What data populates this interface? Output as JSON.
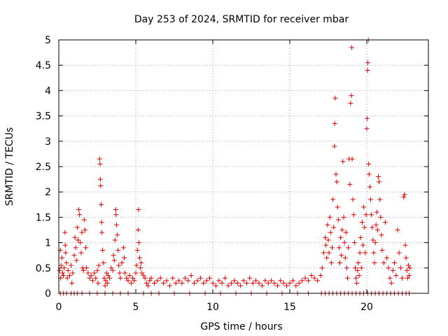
{
  "chart_data": {
    "type": "scatter",
    "title": "Day 253 of 2024, SRMTID for receiver mbar",
    "xlabel": "GPS time / hours",
    "ylabel": "SRMTID / TECUs",
    "xlim": [
      0,
      24
    ],
    "ylim": [
      0,
      5
    ],
    "x_ticks": [
      0,
      5,
      10,
      15,
      20
    ],
    "x_tick_labels": [
      "0",
      "5",
      "10",
      "15",
      "20"
    ],
    "y_ticks": [
      0,
      0.5,
      1,
      1.5,
      2,
      2.5,
      3,
      3.5,
      4,
      4.5,
      5
    ],
    "y_tick_labels": [
      "0",
      "0.5",
      "1",
      "1.5",
      "2",
      "2.5",
      "3",
      "3.5",
      "4",
      "4.5",
      "5"
    ],
    "grid": true,
    "marker": "+",
    "marker_color": "#e00000",
    "series": [
      {
        "name": "SRMTID",
        "points": [
          [
            0.05,
            0.45
          ],
          [
            0.1,
            0.85
          ],
          [
            0.12,
            0.3
          ],
          [
            0.15,
            0.55
          ],
          [
            0.2,
            0.7
          ],
          [
            0.25,
            0.4
          ],
          [
            0.3,
            0.35
          ],
          [
            0.35,
            0.5
          ],
          [
            0.4,
            1.2
          ],
          [
            0.42,
            0.95
          ],
          [
            0.45,
            0.8
          ],
          [
            0.5,
            0.6
          ],
          [
            0.55,
            0.3
          ],
          [
            0.6,
            0.45
          ],
          [
            0.7,
            0.35
          ],
          [
            0.8,
            0.55
          ],
          [
            0.85,
            0.2
          ],
          [
            0.9,
            0.4
          ],
          [
            1.0,
            0.75
          ],
          [
            1.05,
            1.1
          ],
          [
            1.1,
            0.9
          ],
          [
            1.15,
            0.65
          ],
          [
            1.2,
            1.3
          ],
          [
            1.25,
            1.05
          ],
          [
            1.3,
            1.65
          ],
          [
            1.35,
            1.55
          ],
          [
            1.4,
            1.0
          ],
          [
            1.45,
            0.8
          ],
          [
            1.5,
            1.2
          ],
          [
            1.55,
            0.5
          ],
          [
            1.6,
            0.45
          ],
          [
            1.65,
            1.45
          ],
          [
            1.7,
            1.25
          ],
          [
            1.75,
            0.9
          ],
          [
            1.8,
            0.5
          ],
          [
            1.9,
            0.4
          ],
          [
            2.0,
            0.3
          ],
          [
            2.1,
            0.35
          ],
          [
            2.2,
            0.25
          ],
          [
            2.3,
            0.4
          ],
          [
            2.4,
            0.3
          ],
          [
            2.5,
            0.45
          ],
          [
            2.55,
            0.2
          ],
          [
            2.6,
            0.55
          ],
          [
            2.65,
            2.65
          ],
          [
            2.68,
            2.55
          ],
          [
            2.7,
            2.25
          ],
          [
            2.72,
            2.12
          ],
          [
            2.75,
            1.75
          ],
          [
            2.78,
            1.4
          ],
          [
            2.8,
            1.2
          ],
          [
            2.85,
            0.85
          ],
          [
            2.9,
            0.6
          ],
          [
            2.95,
            0.3
          ],
          [
            3.0,
            0.15
          ],
          [
            3.05,
            0.25
          ],
          [
            3.1,
            0.4
          ],
          [
            3.15,
            0.2
          ],
          [
            3.2,
            0.35
          ],
          [
            3.3,
            0.3
          ],
          [
            3.4,
            0.5
          ],
          [
            3.5,
            0.45
          ],
          [
            3.55,
            0.75
          ],
          [
            3.6,
            0.65
          ],
          [
            3.65,
            1.05
          ],
          [
            3.7,
            1.65
          ],
          [
            3.72,
            1.55
          ],
          [
            3.75,
            1.35
          ],
          [
            3.8,
            1.15
          ],
          [
            3.85,
            0.85
          ],
          [
            3.9,
            0.55
          ],
          [
            3.95,
            0.4
          ],
          [
            4.0,
            0.3
          ],
          [
            4.1,
            0.6
          ],
          [
            4.2,
            0.9
          ],
          [
            4.25,
            0.7
          ],
          [
            4.3,
            0.4
          ],
          [
            4.4,
            0.3
          ],
          [
            4.5,
            0.25
          ],
          [
            4.6,
            0.35
          ],
          [
            4.7,
            0.2
          ],
          [
            4.8,
            0.3
          ],
          [
            4.9,
            0.25
          ],
          [
            5.0,
            0.4
          ],
          [
            5.05,
            0.55
          ],
          [
            5.1,
            0.85
          ],
          [
            5.15,
            1.25
          ],
          [
            5.18,
            1.65
          ],
          [
            5.2,
            1.0
          ],
          [
            5.25,
            0.7
          ],
          [
            5.3,
            0.5
          ],
          [
            5.35,
            0.6
          ],
          [
            5.4,
            0.4
          ],
          [
            5.5,
            0.35
          ],
          [
            5.6,
            0.3
          ],
          [
            5.7,
            0.2
          ],
          [
            5.8,
            0.15
          ],
          [
            5.9,
            0.25
          ],
          [
            6.0,
            0.3
          ],
          [
            6.2,
            0.2
          ],
          [
            6.4,
            0.25
          ],
          [
            6.6,
            0.3
          ],
          [
            6.8,
            0.2
          ],
          [
            7.0,
            0.25
          ],
          [
            7.2,
            0.15
          ],
          [
            7.4,
            0.3
          ],
          [
            7.6,
            0.2
          ],
          [
            7.8,
            0.25
          ],
          [
            8.0,
            0.2
          ],
          [
            8.2,
            0.3
          ],
          [
            8.4,
            0.25
          ],
          [
            8.6,
            0.35
          ],
          [
            8.8,
            0.2
          ],
          [
            9.0,
            0.25
          ],
          [
            9.2,
            0.3
          ],
          [
            9.4,
            0.2
          ],
          [
            9.6,
            0.25
          ],
          [
            9.8,
            0.3
          ],
          [
            10.0,
            0.2
          ],
          [
            10.2,
            0.15
          ],
          [
            10.4,
            0.25
          ],
          [
            10.6,
            0.2
          ],
          [
            10.8,
            0.3
          ],
          [
            11.0,
            0.15
          ],
          [
            11.2,
            0.2
          ],
          [
            11.4,
            0.25
          ],
          [
            11.6,
            0.2
          ],
          [
            11.8,
            0.15
          ],
          [
            12.0,
            0.25
          ],
          [
            12.2,
            0.2
          ],
          [
            12.4,
            0.3
          ],
          [
            12.6,
            0.2
          ],
          [
            12.8,
            0.25
          ],
          [
            13.0,
            0.2
          ],
          [
            13.2,
            0.15
          ],
          [
            13.4,
            0.25
          ],
          [
            13.6,
            0.2
          ],
          [
            13.8,
            0.25
          ],
          [
            14.0,
            0.2
          ],
          [
            14.2,
            0.15
          ],
          [
            14.4,
            0.25
          ],
          [
            14.6,
            0.2
          ],
          [
            14.8,
            0.15
          ],
          [
            15.0,
            0.2
          ],
          [
            15.2,
            0.25
          ],
          [
            15.4,
            0.15
          ],
          [
            15.6,
            0.2
          ],
          [
            15.8,
            0.25
          ],
          [
            16.0,
            0.3
          ],
          [
            16.2,
            0.25
          ],
          [
            16.4,
            0.35
          ],
          [
            16.6,
            0.3
          ],
          [
            16.8,
            0.25
          ],
          [
            17.0,
            0.35
          ],
          [
            17.1,
            0.5
          ],
          [
            17.2,
            0.8
          ],
          [
            17.3,
            1.1
          ],
          [
            17.35,
            0.95
          ],
          [
            17.4,
            0.7
          ],
          [
            17.45,
            1.35
          ],
          [
            17.5,
            1.05
          ],
          [
            17.55,
            0.8
          ],
          [
            17.6,
            1.5
          ],
          [
            17.65,
            1.2
          ],
          [
            17.7,
            0.6
          ],
          [
            17.75,
            0.9
          ],
          [
            17.8,
            1.85
          ],
          [
            17.85,
            1.3
          ],
          [
            17.9,
            2.9
          ],
          [
            17.92,
            3.35
          ],
          [
            17.95,
            3.85
          ],
          [
            18.0,
            2.35
          ],
          [
            18.05,
            2.2
          ],
          [
            18.1,
            1.7
          ],
          [
            18.15,
            1.45
          ],
          [
            18.2,
            0.9
          ],
          [
            18.25,
            0.6
          ],
          [
            18.3,
            1.1
          ],
          [
            18.35,
            0.75
          ],
          [
            18.4,
            1.25
          ],
          [
            18.45,
            2.6
          ],
          [
            18.5,
            1.5
          ],
          [
            18.55,
            1.0
          ],
          [
            18.6,
            0.7
          ],
          [
            18.65,
            1.2
          ],
          [
            18.7,
            0.5
          ],
          [
            18.75,
            0.3
          ],
          [
            18.8,
            0.9
          ],
          [
            18.85,
            2.65
          ],
          [
            18.9,
            2.15
          ],
          [
            18.95,
            3.75
          ],
          [
            19.0,
            3.9
          ],
          [
            19.02,
            4.85
          ],
          [
            19.05,
            2.65
          ],
          [
            19.1,
            1.85
          ],
          [
            19.15,
            1.55
          ],
          [
            19.2,
            1.0
          ],
          [
            19.25,
            0.5
          ],
          [
            19.3,
            0.3
          ],
          [
            19.35,
            0.2
          ],
          [
            19.4,
            0.45
          ],
          [
            19.45,
            0.6
          ],
          [
            19.5,
            0.35
          ],
          [
            19.55,
            0.8
          ],
          [
            19.6,
            1.1
          ],
          [
            19.65,
            0.5
          ],
          [
            19.7,
            1.4
          ],
          [
            19.75,
            0.95
          ],
          [
            19.8,
            1.7
          ],
          [
            19.85,
            1.3
          ],
          [
            19.9,
            0.8
          ],
          [
            19.95,
            1.55
          ],
          [
            20.0,
            3.25
          ],
          [
            20.02,
            3.45
          ],
          [
            20.05,
            4.4
          ],
          [
            20.07,
            4.55
          ],
          [
            20.1,
            5.0
          ],
          [
            20.12,
            2.55
          ],
          [
            20.15,
            2.35
          ],
          [
            20.2,
            2.1
          ],
          [
            20.25,
            1.85
          ],
          [
            20.3,
            1.55
          ],
          [
            20.35,
            1.3
          ],
          [
            20.4,
            1.05
          ],
          [
            20.45,
            0.8
          ],
          [
            20.5,
            0.6
          ],
          [
            20.55,
            1.0
          ],
          [
            20.6,
            1.35
          ],
          [
            20.65,
            1.6
          ],
          [
            20.7,
            1.25
          ],
          [
            20.75,
            2.3
          ],
          [
            20.8,
            2.2
          ],
          [
            20.85,
            1.85
          ],
          [
            20.9,
            1.5
          ],
          [
            20.95,
            1.15
          ],
          [
            21.0,
            0.85
          ],
          [
            21.1,
            0.6
          ],
          [
            21.2,
            1.4
          ],
          [
            21.3,
            0.7
          ],
          [
            21.4,
            0.5
          ],
          [
            21.5,
            0.3
          ],
          [
            21.6,
            0.2
          ],
          [
            21.7,
            0.45
          ],
          [
            21.8,
            0.6
          ],
          [
            21.9,
            0.35
          ],
          [
            22.0,
            1.25
          ],
          [
            22.1,
            0.8
          ],
          [
            22.2,
            0.5
          ],
          [
            22.3,
            0.3
          ],
          [
            22.4,
            1.9
          ],
          [
            22.45,
            1.95
          ],
          [
            22.5,
            0.95
          ],
          [
            22.55,
            0.7
          ],
          [
            22.6,
            0.45
          ],
          [
            22.65,
            0.3
          ],
          [
            22.7,
            0.55
          ],
          [
            22.75,
            0.35
          ],
          [
            22.8,
            0.5
          ]
        ],
        "zero_points": [
          0.1,
          0.3,
          0.5,
          0.8,
          1.0,
          1.2,
          1.5,
          2.0,
          2.5,
          3.0,
          3.5,
          4.0,
          4.5,
          5.5,
          6.0,
          6.5,
          7.5,
          8.5,
          9.5,
          10.5,
          11.5,
          12.5,
          13.5,
          14.5,
          15.5,
          16.2,
          17.05,
          17.3,
          17.55,
          17.8,
          18.05,
          18.3,
          18.55,
          18.8,
          19.05,
          19.3,
          19.55,
          19.8,
          20.05,
          20.3,
          20.55,
          20.8,
          21.05,
          21.3,
          21.55,
          21.8,
          22.05,
          22.3,
          22.55,
          22.75
        ]
      }
    ]
  }
}
